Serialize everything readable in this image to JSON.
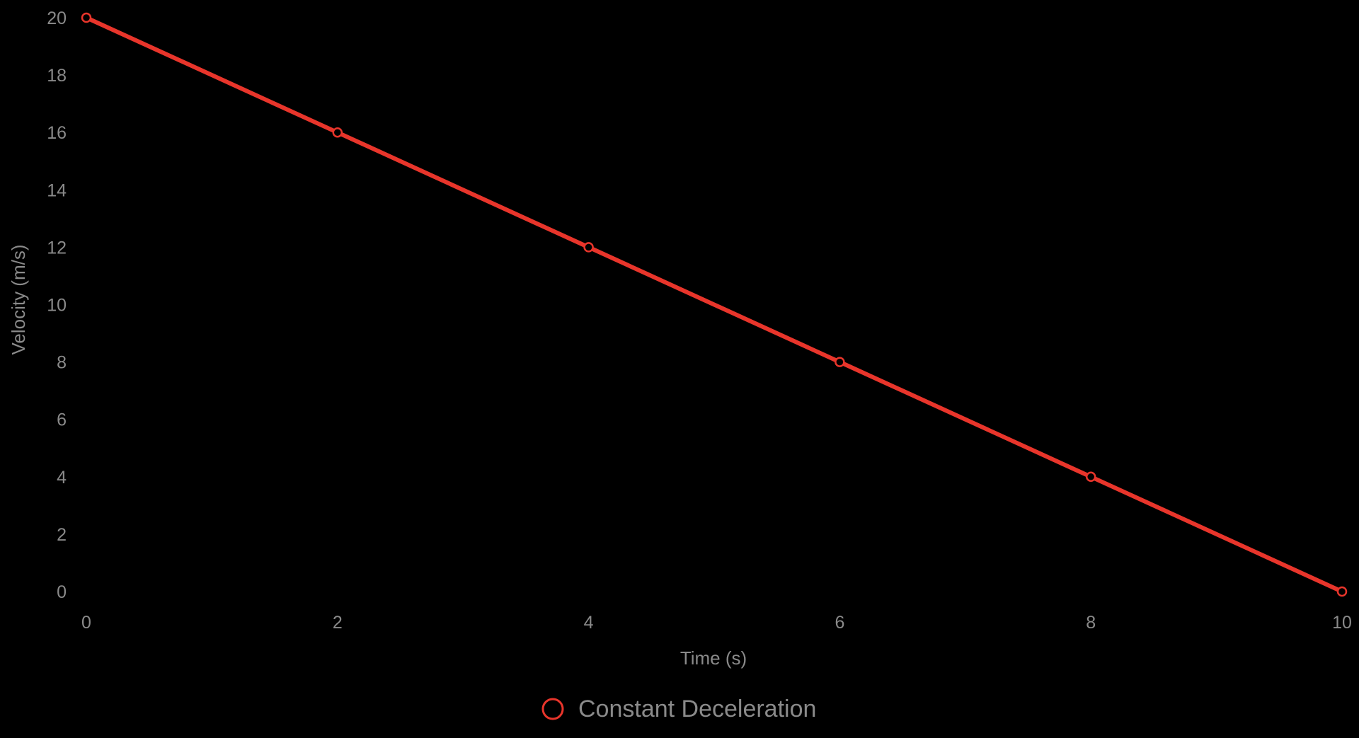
{
  "chart_data": {
    "type": "line",
    "x": [
      0,
      2,
      4,
      6,
      8,
      10
    ],
    "series": [
      {
        "name": "Constant Deceleration",
        "values": [
          20,
          16,
          12,
          8,
          4,
          0
        ],
        "color": "#e8352b"
      }
    ],
    "title": "",
    "xlabel": "Time (s)",
    "ylabel": "Velocity (m/s)",
    "xlim": [
      0,
      10
    ],
    "ylim": [
      0,
      20
    ],
    "xticks": [
      0,
      2,
      4,
      6,
      8,
      10
    ],
    "yticks": [
      0,
      2,
      4,
      6,
      8,
      10,
      12,
      14,
      16,
      18,
      20
    ],
    "grid": false,
    "legend": "bottom-center",
    "background": "#000000",
    "text_color": "#8a8a8a"
  }
}
